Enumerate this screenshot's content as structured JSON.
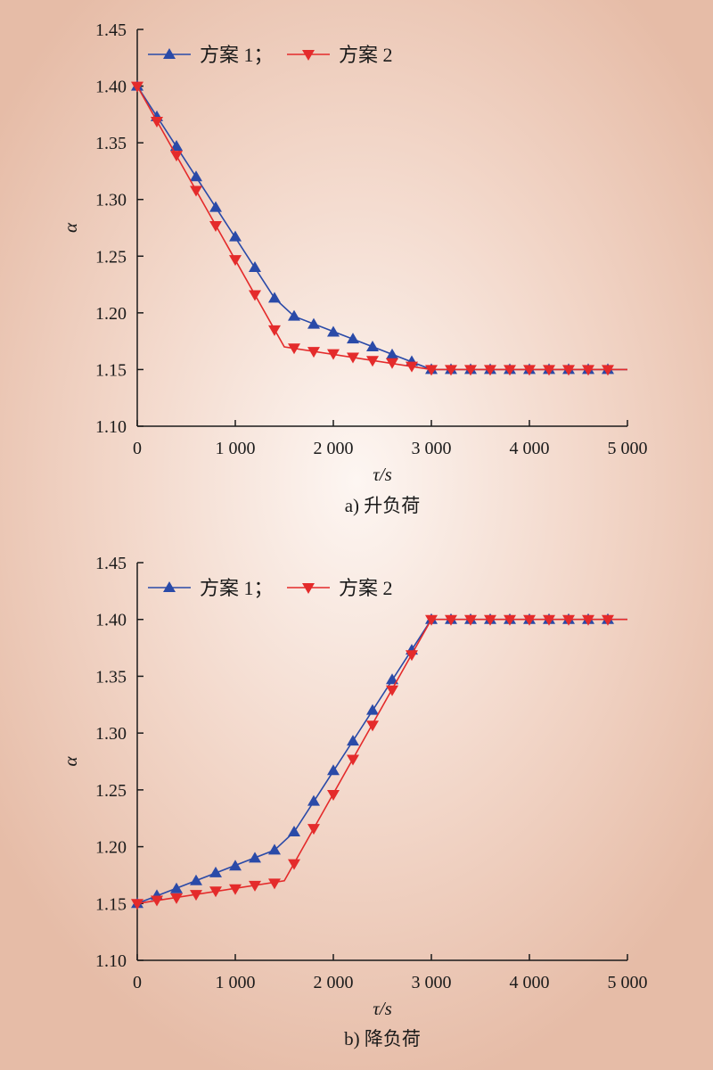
{
  "colors": {
    "series_1": "#2a4aa8",
    "series_2": "#e42b2b",
    "axis": "#1a1a1a"
  },
  "chart_data": [
    {
      "type": "line",
      "caption": "a) 升负荷",
      "xlabel": "τ/s",
      "ylabel": "α",
      "xlim": [
        0,
        5000
      ],
      "ylim": [
        1.1,
        1.45
      ],
      "x_ticks": [
        0,
        1000,
        2000,
        3000,
        4000,
        5000
      ],
      "x_tick_labels": [
        "0",
        "1 000",
        "2 000",
        "3 000",
        "4 000",
        "5 000"
      ],
      "y_ticks": [
        1.1,
        1.15,
        1.2,
        1.25,
        1.3,
        1.35,
        1.4,
        1.45
      ],
      "y_tick_labels": [
        "1.10",
        "1.15",
        "1.20",
        "1.25",
        "1.30",
        "1.35",
        "1.40",
        "1.45"
      ],
      "legend_position": "top-left",
      "series": [
        {
          "name": "方案 1；",
          "marker": "triangle-up",
          "line": [
            [
              0,
              1.4
            ],
            [
              1400,
              1.213
            ],
            [
              1600,
              1.197
            ],
            [
              3000,
              1.15
            ],
            [
              5000,
              1.15
            ]
          ],
          "x": [
            0,
            200,
            400,
            600,
            800,
            1000,
            1200,
            1400,
            1600,
            1800,
            2000,
            2200,
            2400,
            2600,
            2800,
            3000,
            3200,
            3400,
            3600,
            3800,
            4000,
            4200,
            4400,
            4600,
            4800
          ],
          "values": [
            1.4,
            1.373,
            1.347,
            1.32,
            1.293,
            1.267,
            1.24,
            1.213,
            1.197,
            1.19,
            1.183,
            1.177,
            1.17,
            1.163,
            1.157,
            1.15,
            1.15,
            1.15,
            1.15,
            1.15,
            1.15,
            1.15,
            1.15,
            1.15,
            1.15
          ]
        },
        {
          "name": "方案 2",
          "marker": "triangle-down",
          "line": [
            [
              0,
              1.4
            ],
            [
              1500,
              1.17
            ],
            [
              3000,
              1.15
            ],
            [
              5000,
              1.15
            ]
          ],
          "x": [
            0,
            200,
            400,
            600,
            800,
            1000,
            1200,
            1400,
            1600,
            1800,
            2000,
            2200,
            2400,
            2600,
            2800,
            3000,
            3200,
            3400,
            3600,
            3800,
            4000,
            4200,
            4400,
            4600,
            4800
          ],
          "values": [
            1.4,
            1.369,
            1.339,
            1.308,
            1.277,
            1.247,
            1.216,
            1.185,
            1.169,
            1.166,
            1.164,
            1.161,
            1.158,
            1.156,
            1.153,
            1.15,
            1.15,
            1.15,
            1.15,
            1.15,
            1.15,
            1.15,
            1.15,
            1.15,
            1.15
          ]
        }
      ]
    },
    {
      "type": "line",
      "caption": "b) 降负荷",
      "xlabel": "τ/s",
      "ylabel": "α",
      "xlim": [
        0,
        5000
      ],
      "ylim": [
        1.1,
        1.45
      ],
      "x_ticks": [
        0,
        1000,
        2000,
        3000,
        4000,
        5000
      ],
      "x_tick_labels": [
        "0",
        "1 000",
        "2 000",
        "3 000",
        "4 000",
        "5 000"
      ],
      "y_ticks": [
        1.1,
        1.15,
        1.2,
        1.25,
        1.3,
        1.35,
        1.4,
        1.45
      ],
      "y_tick_labels": [
        "1.10",
        "1.15",
        "1.20",
        "1.25",
        "1.30",
        "1.35",
        "1.40",
        "1.45"
      ],
      "legend_position": "top-left",
      "series": [
        {
          "name": "方案 1；",
          "marker": "triangle-up",
          "line": [
            [
              0,
              1.15
            ],
            [
              1400,
              1.197
            ],
            [
              1600,
              1.213
            ],
            [
              3000,
              1.4
            ],
            [
              5000,
              1.4
            ]
          ],
          "x": [
            0,
            200,
            400,
            600,
            800,
            1000,
            1200,
            1400,
            1600,
            1800,
            2000,
            2200,
            2400,
            2600,
            2800,
            3000,
            3200,
            3400,
            3600,
            3800,
            4000,
            4200,
            4400,
            4600,
            4800
          ],
          "values": [
            1.15,
            1.157,
            1.163,
            1.17,
            1.177,
            1.183,
            1.19,
            1.197,
            1.213,
            1.24,
            1.267,
            1.293,
            1.32,
            1.347,
            1.373,
            1.4,
            1.4,
            1.4,
            1.4,
            1.4,
            1.4,
            1.4,
            1.4,
            1.4,
            1.4
          ]
        },
        {
          "name": "方案 2",
          "marker": "triangle-down",
          "line": [
            [
              0,
              1.15
            ],
            [
              1500,
              1.17
            ],
            [
              3000,
              1.4
            ],
            [
              5000,
              1.4
            ]
          ],
          "x": [
            0,
            200,
            400,
            600,
            800,
            1000,
            1200,
            1400,
            1600,
            1800,
            2000,
            2200,
            2400,
            2600,
            2800,
            3000,
            3200,
            3400,
            3600,
            3800,
            4000,
            4200,
            4400,
            4600,
            4800
          ],
          "values": [
            1.15,
            1.153,
            1.155,
            1.158,
            1.161,
            1.163,
            1.166,
            1.168,
            1.185,
            1.216,
            1.246,
            1.277,
            1.307,
            1.338,
            1.369,
            1.4,
            1.4,
            1.4,
            1.4,
            1.4,
            1.4,
            1.4,
            1.4,
            1.4,
            1.4
          ]
        }
      ]
    }
  ]
}
